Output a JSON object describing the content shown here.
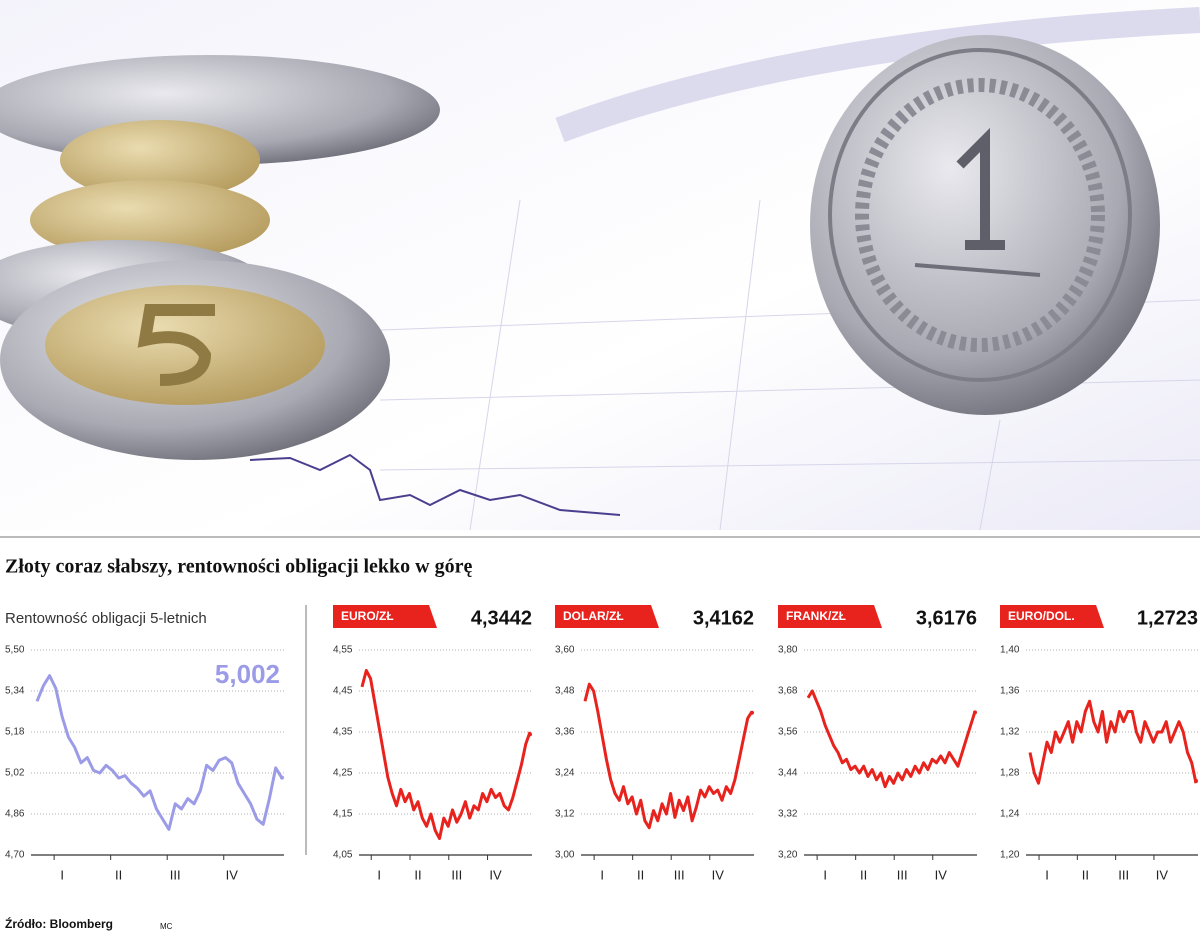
{
  "header": {
    "title": "Złoty coraz słabszy, rentowności obligacji lekko w górę"
  },
  "chart_data": [
    {
      "type": "line",
      "title": "Rentowność obligacji 5-letnich",
      "headline": {
        "value": 5.002,
        "label": "5,002"
      },
      "color": "#9b9be8",
      "categories": [
        null,
        null,
        null,
        null,
        "I",
        null,
        null,
        null,
        null,
        null,
        null,
        null,
        null,
        "II",
        null,
        null,
        null,
        null,
        null,
        null,
        null,
        null,
        "III",
        null,
        null,
        null,
        null,
        null,
        null,
        null,
        null,
        "IV",
        null,
        null,
        null,
        null,
        null,
        null,
        null,
        null
      ],
      "values": [
        5.3,
        5.36,
        5.4,
        5.35,
        5.24,
        5.16,
        5.12,
        5.06,
        5.08,
        5.03,
        5.02,
        5.05,
        5.03,
        5.0,
        5.01,
        4.98,
        4.96,
        4.93,
        4.95,
        4.88,
        4.84,
        4.8,
        4.9,
        4.88,
        4.92,
        4.9,
        4.95,
        5.05,
        5.03,
        5.07,
        5.08,
        5.06,
        4.98,
        4.94,
        4.9,
        4.84,
        4.82,
        4.92,
        5.04,
        5.0
      ],
      "ylim": [
        4.7,
        5.5
      ],
      "yticks": [
        {
          "value": 4.7,
          "label": "4,70"
        },
        {
          "value": 4.86,
          "label": "4,86"
        },
        {
          "value": 5.02,
          "label": "5,02"
        },
        {
          "value": 5.18,
          "label": "5,18"
        },
        {
          "value": 5.34,
          "label": "5,34"
        },
        {
          "value": 5.5,
          "label": "5,50"
        }
      ]
    },
    {
      "type": "line",
      "title": "EURO/ZŁ",
      "headline": {
        "value": 4.3442,
        "label": "4,3442"
      },
      "color": "#e8231e",
      "categories": [
        null,
        null,
        null,
        null,
        "I",
        null,
        null,
        null,
        null,
        null,
        null,
        null,
        null,
        "II",
        null,
        null,
        null,
        null,
        null,
        null,
        null,
        null,
        "III",
        null,
        null,
        null,
        null,
        null,
        null,
        null,
        null,
        "IV",
        null,
        null,
        null,
        null,
        null,
        null,
        null,
        null
      ],
      "values": [
        4.46,
        4.5,
        4.48,
        4.42,
        4.36,
        4.3,
        4.24,
        4.2,
        4.17,
        4.21,
        4.18,
        4.2,
        4.16,
        4.18,
        4.14,
        4.12,
        4.15,
        4.11,
        4.09,
        4.14,
        4.12,
        4.16,
        4.13,
        4.15,
        4.18,
        4.14,
        4.17,
        4.16,
        4.2,
        4.18,
        4.21,
        4.19,
        4.2,
        4.17,
        4.16,
        4.19,
        4.23,
        4.27,
        4.32,
        4.35
      ],
      "ylim": [
        4.05,
        4.55
      ],
      "yticks": [
        {
          "value": 4.05,
          "label": "4,05"
        },
        {
          "value": 4.15,
          "label": "4,15"
        },
        {
          "value": 4.25,
          "label": "4,25"
        },
        {
          "value": 4.35,
          "label": "4,35"
        },
        {
          "value": 4.45,
          "label": "4,45"
        },
        {
          "value": 4.55,
          "label": "4,55"
        }
      ]
    },
    {
      "type": "line",
      "title": "DOLAR/ZŁ",
      "headline": {
        "value": 3.4162,
        "label": "3,4162"
      },
      "color": "#e8231e",
      "categories": [
        null,
        null,
        null,
        null,
        "I",
        null,
        null,
        null,
        null,
        null,
        null,
        null,
        null,
        "II",
        null,
        null,
        null,
        null,
        null,
        null,
        null,
        null,
        "III",
        null,
        null,
        null,
        null,
        null,
        null,
        null,
        null,
        "IV",
        null,
        null,
        null,
        null,
        null,
        null,
        null,
        null
      ],
      "values": [
        3.45,
        3.5,
        3.48,
        3.42,
        3.35,
        3.28,
        3.22,
        3.18,
        3.16,
        3.2,
        3.15,
        3.17,
        3.12,
        3.16,
        3.1,
        3.08,
        3.13,
        3.1,
        3.15,
        3.12,
        3.18,
        3.11,
        3.16,
        3.13,
        3.17,
        3.1,
        3.14,
        3.19,
        3.17,
        3.2,
        3.18,
        3.19,
        3.16,
        3.2,
        3.18,
        3.22,
        3.28,
        3.34,
        3.4,
        3.42
      ],
      "ylim": [
        3.0,
        3.6
      ],
      "yticks": [
        {
          "value": 3.0,
          "label": "3,00"
        },
        {
          "value": 3.12,
          "label": "3,12"
        },
        {
          "value": 3.24,
          "label": "3,24"
        },
        {
          "value": 3.36,
          "label": "3,36"
        },
        {
          "value": 3.48,
          "label": "3,48"
        },
        {
          "value": 3.6,
          "label": "3,60"
        }
      ]
    },
    {
      "type": "line",
      "title": "FRANK/ZŁ",
      "headline": {
        "value": 3.6176,
        "label": "3,6176"
      },
      "color": "#e8231e",
      "categories": [
        null,
        null,
        null,
        null,
        "I",
        null,
        null,
        null,
        null,
        null,
        null,
        null,
        null,
        "II",
        null,
        null,
        null,
        null,
        null,
        null,
        null,
        null,
        "III",
        null,
        null,
        null,
        null,
        null,
        null,
        null,
        null,
        "IV",
        null,
        null,
        null,
        null,
        null,
        null,
        null,
        null
      ],
      "values": [
        3.66,
        3.68,
        3.65,
        3.62,
        3.58,
        3.55,
        3.52,
        3.5,
        3.47,
        3.48,
        3.45,
        3.46,
        3.44,
        3.46,
        3.43,
        3.45,
        3.42,
        3.44,
        3.4,
        3.43,
        3.41,
        3.44,
        3.42,
        3.45,
        3.43,
        3.46,
        3.44,
        3.47,
        3.45,
        3.48,
        3.47,
        3.49,
        3.47,
        3.5,
        3.48,
        3.46,
        3.5,
        3.54,
        3.58,
        3.62
      ],
      "ylim": [
        3.2,
        3.8
      ],
      "yticks": [
        {
          "value": 3.2,
          "label": "3,20"
        },
        {
          "value": 3.32,
          "label": "3,32"
        },
        {
          "value": 3.44,
          "label": "3,44"
        },
        {
          "value": 3.56,
          "label": "3,56"
        },
        {
          "value": 3.68,
          "label": "3,68"
        },
        {
          "value": 3.8,
          "label": "3,80"
        }
      ]
    },
    {
      "type": "line",
      "title": "EURO/DOL.",
      "headline": {
        "value": 1.2723,
        "label": "1,2723"
      },
      "color": "#e8231e",
      "categories": [
        null,
        null,
        null,
        null,
        "I",
        null,
        null,
        null,
        null,
        null,
        null,
        null,
        null,
        "II",
        null,
        null,
        null,
        null,
        null,
        null,
        null,
        null,
        "III",
        null,
        null,
        null,
        null,
        null,
        null,
        null,
        null,
        "IV",
        null,
        null,
        null,
        null,
        null,
        null,
        null,
        null
      ],
      "values": [
        1.3,
        1.28,
        1.27,
        1.29,
        1.31,
        1.3,
        1.32,
        1.31,
        1.32,
        1.33,
        1.31,
        1.33,
        1.32,
        1.34,
        1.35,
        1.33,
        1.32,
        1.34,
        1.31,
        1.33,
        1.32,
        1.34,
        1.33,
        1.34,
        1.34,
        1.32,
        1.31,
        1.33,
        1.32,
        1.31,
        1.32,
        1.32,
        1.33,
        1.31,
        1.32,
        1.33,
        1.32,
        1.3,
        1.29,
        1.27
      ],
      "ylim": [
        1.2,
        1.4
      ],
      "yticks": [
        {
          "value": 1.2,
          "label": "1,20"
        },
        {
          "value": 1.24,
          "label": "1,24"
        },
        {
          "value": 1.28,
          "label": "1,28"
        },
        {
          "value": 1.32,
          "label": "1,32"
        },
        {
          "value": 1.36,
          "label": "1,36"
        },
        {
          "value": 1.4,
          "label": "1,40"
        }
      ]
    }
  ],
  "footer": {
    "source": "Źródło: Bloomberg",
    "author": "MC"
  }
}
